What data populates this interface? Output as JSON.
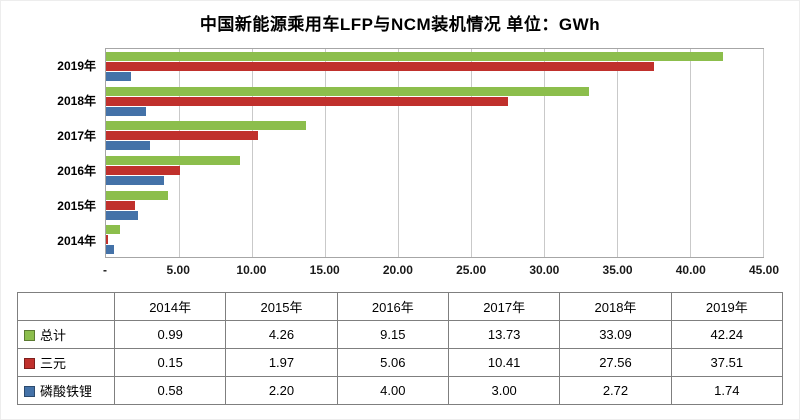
{
  "title": "中国新能源乘用车LFP与NCM装机情况 单位：GWh",
  "chart_data": {
    "type": "bar",
    "orientation": "horizontal",
    "title": "中国新能源乘用车LFP与NCM装机情况 单位：GWh",
    "unit": "GWh",
    "categories": [
      "2019年",
      "2018年",
      "2017年",
      "2016年",
      "2015年",
      "2014年"
    ],
    "series": [
      {
        "name": "总计",
        "color": "#8CBE4C",
        "values": [
          42.24,
          33.09,
          13.73,
          9.15,
          4.26,
          0.99
        ]
      },
      {
        "name": "三元",
        "color": "#C0302C",
        "values": [
          37.51,
          27.56,
          10.41,
          5.06,
          1.97,
          0.15
        ]
      },
      {
        "name": "磷酸铁锂",
        "color": "#4472A8",
        "values": [
          1.74,
          2.72,
          3.0,
          4.0,
          2.2,
          0.58
        ]
      }
    ],
    "xlim": [
      0,
      45
    ],
    "x_tick_values": [
      0,
      5,
      10,
      15,
      20,
      25,
      30,
      35,
      40,
      45
    ],
    "x_tick_labels": [
      "-",
      "5.00",
      "10.00",
      "15.00",
      "20.00",
      "25.00",
      "30.00",
      "35.00",
      "40.00",
      "45.00"
    ],
    "grid": true,
    "legend_position": "table-left-column"
  },
  "table": {
    "columns": [
      "2014年",
      "2015年",
      "2016年",
      "2017年",
      "2018年",
      "2019年"
    ],
    "rows": [
      {
        "label": "总计",
        "color": "#8CBE4C",
        "values": [
          "0.99",
          "4.26",
          "9.15",
          "13.73",
          "33.09",
          "42.24"
        ]
      },
      {
        "label": "三元",
        "color": "#C0302C",
        "values": [
          "0.15",
          "1.97",
          "5.06",
          "10.41",
          "27.56",
          "37.51"
        ]
      },
      {
        "label": "磷酸铁锂",
        "color": "#4472A8",
        "values": [
          "0.58",
          "2.20",
          "4.00",
          "3.00",
          "2.72",
          "1.74"
        ]
      }
    ]
  }
}
